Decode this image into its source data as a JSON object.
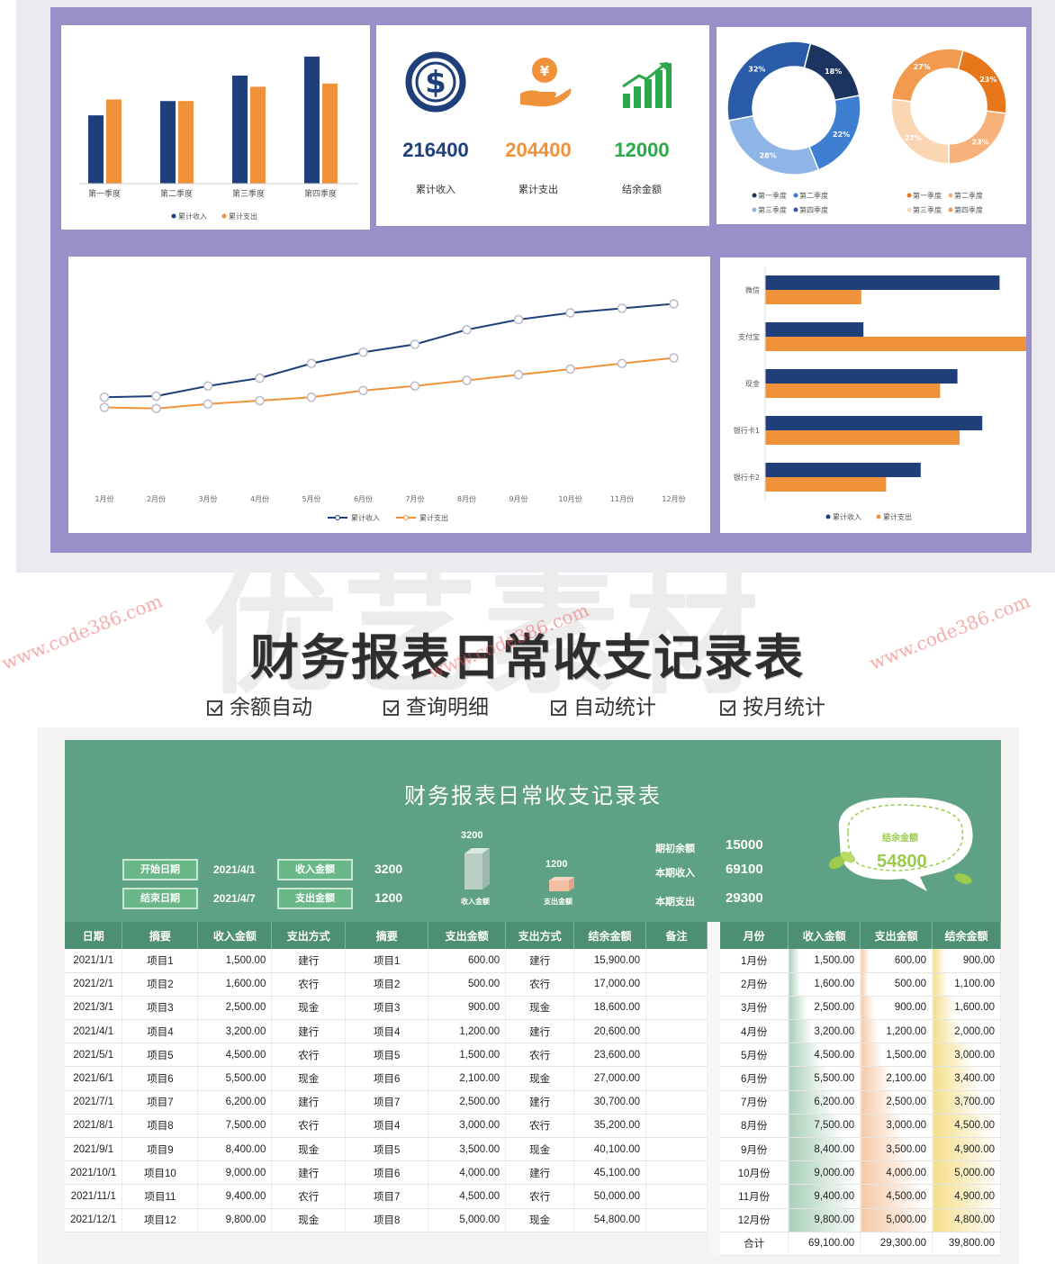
{
  "dashboard": {
    "bar_chart": {
      "type": "bar",
      "categories": [
        "第一季度",
        "第二季度",
        "第三季度",
        "第四季度"
      ],
      "series": [
        {
          "name": "累计收入",
          "values": [
            43,
            52,
            68,
            80
          ],
          "color": "#1f3f7a"
        },
        {
          "name": "累计支出",
          "values": [
            53,
            52,
            61,
            63
          ],
          "color": "#f0923a"
        }
      ],
      "ylim": [
        0,
        85
      ]
    },
    "stats": [
      {
        "value": "216400",
        "label": "累计收入",
        "icon": "dollar-coin-icon",
        "color": "#1f3f7a"
      },
      {
        "value": "204400",
        "label": "累计支出",
        "icon": "hand-coin-icon",
        "color": "#f0923a"
      },
      {
        "value": "12000",
        "label": "结余金额",
        "icon": "growth-bars-icon",
        "color": "#2aa84a"
      }
    ],
    "donut_income": {
      "type": "pie",
      "slices": [
        {
          "label": "第一季度",
          "value": 18,
          "text": "18%",
          "color": "#1b3460"
        },
        {
          "label": "第二季度",
          "value": 22,
          "text": "22%",
          "color": "#3e7fd1"
        },
        {
          "label": "第三季度",
          "value": 28,
          "text": "28%",
          "color": "#8fb4e6"
        },
        {
          "label": "第四季度",
          "value": 32,
          "text": "32%",
          "color": "#2a5ba8"
        }
      ],
      "legend": [
        "第一季度",
        "第二季度",
        "第三季度",
        "第四季度"
      ]
    },
    "donut_expense": {
      "type": "pie",
      "slices": [
        {
          "label": "第一季度",
          "value": 23,
          "text": "23%",
          "color": "#e8761a"
        },
        {
          "label": "第二季度",
          "value": 23,
          "text": "23%",
          "color": "#f7b27a"
        },
        {
          "label": "第三季度",
          "value": 27,
          "text": "27%",
          "color": "#fbd6b3"
        },
        {
          "label": "第四季度",
          "value": 27,
          "text": "27%",
          "color": "#f29a4e"
        }
      ],
      "legend": [
        "第一季度",
        "第二季度",
        "第三季度",
        "第四季度"
      ]
    },
    "line_chart": {
      "type": "line",
      "x": [
        "1月份",
        "2月份",
        "3月份",
        "4月份",
        "5月份",
        "6月份",
        "7月份",
        "8月份",
        "9月份",
        "10月份",
        "11月份",
        "12月份"
      ],
      "series": [
        {
          "name": "累计收入",
          "values": [
            1500,
            1600,
            2500,
            3200,
            4500,
            5500,
            6200,
            7500,
            8400,
            9000,
            9400,
            9800
          ],
          "color": "#1f3f7a"
        },
        {
          "name": "累计支出",
          "values": [
            600,
            500,
            900,
            1200,
            1500,
            2100,
            2500,
            3000,
            3500,
            4000,
            4500,
            5000
          ],
          "color": "#f0923a"
        }
      ]
    },
    "hbar_chart": {
      "type": "bar",
      "categories": [
        "微信",
        "支付宝",
        "现金",
        "银行卡1",
        "银行卡2"
      ],
      "series": [
        {
          "name": "累计收入",
          "values": [
            217,
            91,
            178,
            201,
            144
          ],
          "color": "#1f3f7a"
        },
        {
          "name": "累计支出",
          "values": [
            89,
            251,
            162,
            180,
            112
          ],
          "color": "#f0923a"
        }
      ]
    }
  },
  "headline": {
    "watermark": "优艺素材",
    "title": "财务报表日常收支记录表",
    "features": [
      "余额自动",
      "查询明细",
      "自动统计",
      "按月统计"
    ],
    "url": "www.code386.com"
  },
  "sheet": {
    "title": "财务报表日常收支记录表",
    "start_label": "开始日期",
    "start_value": "2021/4/1",
    "end_label": "结束日期",
    "end_value": "2021/4/7",
    "income_label": "收入金额",
    "income_value": "3200",
    "expense_label": "支出金额",
    "expense_value": "1200",
    "bar_income": {
      "value": "3200",
      "label": "收入金额"
    },
    "bar_expense": {
      "value": "1200",
      "label": "支出金额"
    },
    "opening_label": "期初余额",
    "opening_value": "15000",
    "period_income_label": "本期收入",
    "period_income_value": "69100",
    "period_expense_label": "本期支出",
    "period_expense_value": "29300",
    "balance_label": "结余金额",
    "balance_value": "54800",
    "columns": [
      "日期",
      "摘要",
      "收入金额",
      "支出方式",
      "摘要",
      "支出金额",
      "支出方式",
      "结余金额",
      "备注"
    ],
    "rows": [
      [
        "2021/1/1",
        "项目1",
        "1,500.00",
        "建行",
        "项目1",
        "600.00",
        "建行",
        "15,900.00",
        ""
      ],
      [
        "2021/2/1",
        "项目2",
        "1,600.00",
        "农行",
        "项目2",
        "500.00",
        "农行",
        "17,000.00",
        ""
      ],
      [
        "2021/3/1",
        "项目3",
        "2,500.00",
        "现金",
        "项目3",
        "900.00",
        "现金",
        "18,600.00",
        ""
      ],
      [
        "2021/4/1",
        "项目4",
        "3,200.00",
        "建行",
        "项目4",
        "1,200.00",
        "建行",
        "20,600.00",
        ""
      ],
      [
        "2021/5/1",
        "项目5",
        "4,500.00",
        "农行",
        "项目5",
        "1,500.00",
        "农行",
        "23,600.00",
        ""
      ],
      [
        "2021/6/1",
        "项目6",
        "5,500.00",
        "现金",
        "项目6",
        "2,100.00",
        "现金",
        "27,000.00",
        ""
      ],
      [
        "2021/7/1",
        "项目7",
        "6,200.00",
        "建行",
        "项目7",
        "2,500.00",
        "建行",
        "30,700.00",
        ""
      ],
      [
        "2021/8/1",
        "项目8",
        "7,500.00",
        "农行",
        "项目4",
        "3,000.00",
        "农行",
        "35,200.00",
        ""
      ],
      [
        "2021/9/1",
        "项目9",
        "8,400.00",
        "现金",
        "项目5",
        "3,500.00",
        "现金",
        "40,100.00",
        ""
      ],
      [
        "2021/10/1",
        "项目10",
        "9,000.00",
        "建行",
        "项目6",
        "4,000.00",
        "建行",
        "45,100.00",
        ""
      ],
      [
        "2021/11/1",
        "项目11",
        "9,400.00",
        "农行",
        "项目7",
        "4,500.00",
        "农行",
        "50,000.00",
        ""
      ],
      [
        "2021/12/1",
        "项目12",
        "9,800.00",
        "现金",
        "项目8",
        "5,000.00",
        "现金",
        "54,800.00",
        ""
      ]
    ],
    "month_columns": [
      "月份",
      "收入金额",
      "支出金额",
      "结余金额"
    ],
    "month_rows": [
      [
        "1月份",
        "1,500.00",
        "600.00",
        "900.00"
      ],
      [
        "2月份",
        "1,600.00",
        "500.00",
        "1,100.00"
      ],
      [
        "3月份",
        "2,500.00",
        "900.00",
        "1,600.00"
      ],
      [
        "4月份",
        "3,200.00",
        "1,200.00",
        "2,000.00"
      ],
      [
        "5月份",
        "4,500.00",
        "1,500.00",
        "3,000.00"
      ],
      [
        "6月份",
        "5,500.00",
        "2,100.00",
        "3,400.00"
      ],
      [
        "7月份",
        "6,200.00",
        "2,500.00",
        "3,700.00"
      ],
      [
        "8月份",
        "7,500.00",
        "3,000.00",
        "4,500.00"
      ],
      [
        "9月份",
        "8,400.00",
        "3,500.00",
        "4,900.00"
      ],
      [
        "10月份",
        "9,000.00",
        "4,000.00",
        "5,000.00"
      ],
      [
        "11月份",
        "9,400.00",
        "4,500.00",
        "4,900.00"
      ],
      [
        "12月份",
        "9,800.00",
        "5,000.00",
        "4,800.00"
      ]
    ],
    "month_total": [
      "合计",
      "69,100.00",
      "29,300.00",
      "39,800.00"
    ]
  }
}
